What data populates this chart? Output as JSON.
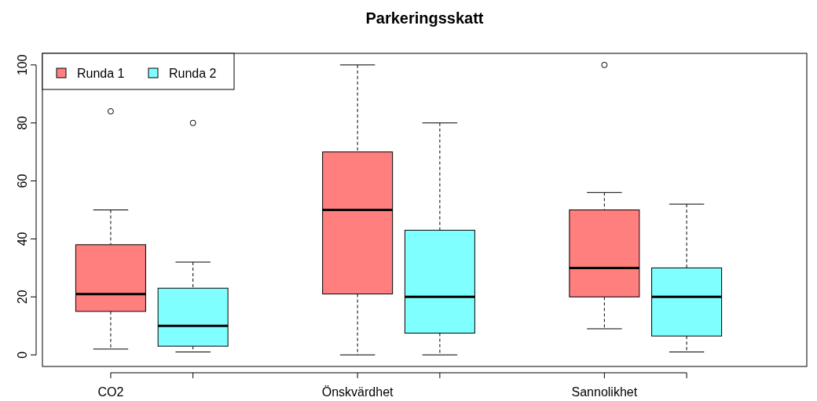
{
  "chart_data": {
    "type": "box",
    "title": "Parkeringsskatt",
    "categories": [
      "CO2",
      "Önskvärdhet",
      "Sannolikhet"
    ],
    "ylim": [
      -4,
      104
    ],
    "yticks": [
      0,
      20,
      40,
      60,
      80,
      100
    ],
    "legend": "top left",
    "grid": false,
    "series": [
      {
        "name": "Runda 1",
        "color": "#ff7f7f",
        "boxes": [
          {
            "low": 2,
            "q1": 15,
            "median": 21,
            "q3": 38,
            "high": 50,
            "outliers": [
              84
            ]
          },
          {
            "low": 0,
            "q1": 21,
            "median": 50,
            "q3": 70,
            "high": 100
          },
          {
            "low": 9,
            "q1": 20,
            "median": 30,
            "q3": 50,
            "high": 56,
            "outliers": [
              100
            ]
          }
        ]
      },
      {
        "name": "Runda 2",
        "color": "#7fffff",
        "boxes": [
          {
            "low": 1,
            "q1": 3,
            "median": 10,
            "q3": 23,
            "high": 32,
            "outliers": [
              80
            ]
          },
          {
            "low": 0,
            "q1": 7.5,
            "median": 20,
            "q3": 43,
            "high": 80
          },
          {
            "low": 1,
            "q1": 6.5,
            "median": 20,
            "q3": 30,
            "high": 52
          }
        ]
      }
    ]
  }
}
